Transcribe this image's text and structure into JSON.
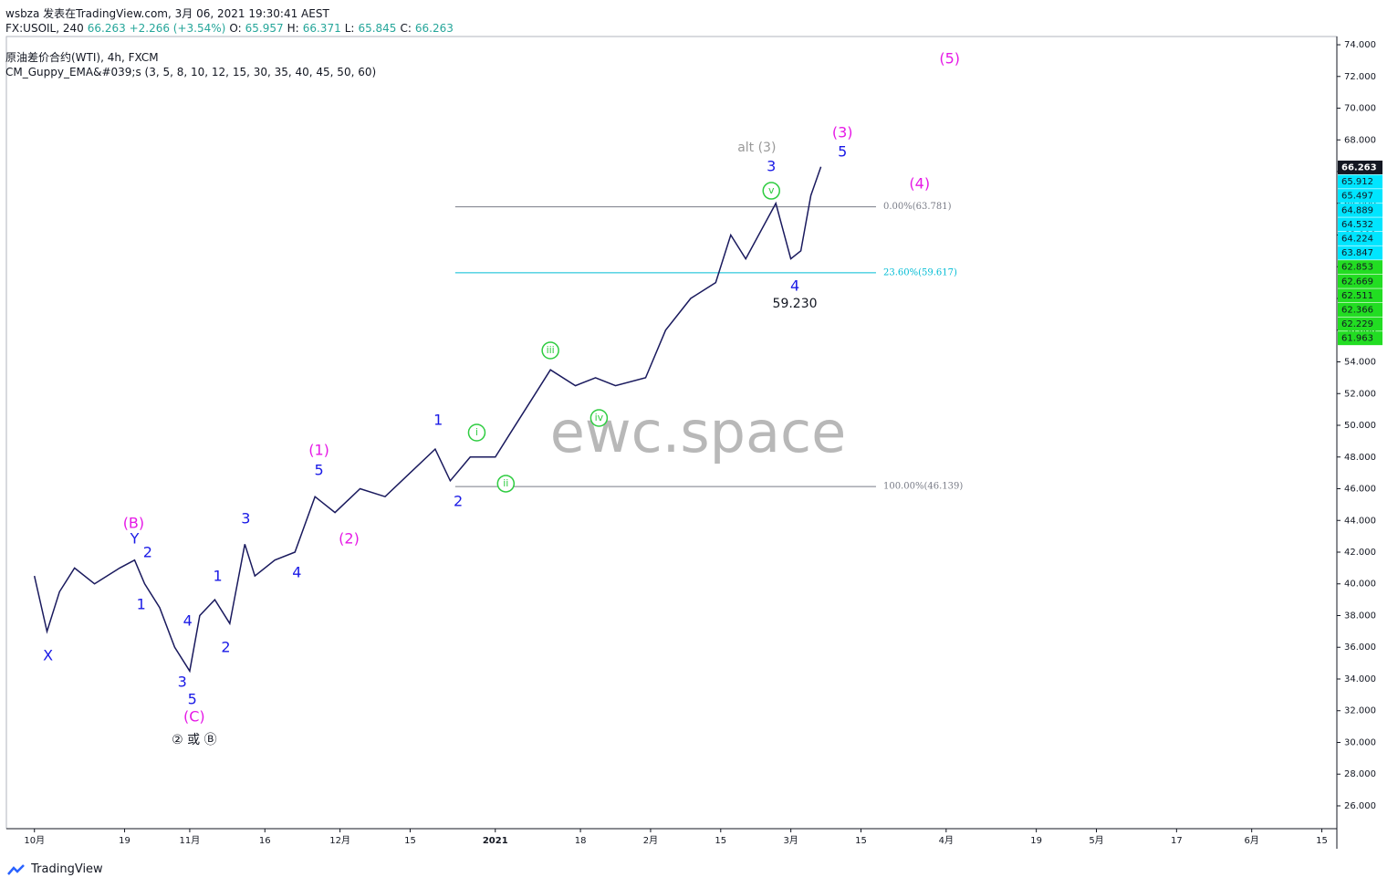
{
  "header": {
    "publisher": "wsbza 发表在TradingView.com, 3月 06, 2021 19:30:41 AEST",
    "quote": [
      {
        "text": "FX:USOIL, 240",
        "color": "#131722"
      },
      {
        "text": "66.263 +2.266 (+3.54%)",
        "color": "#26a69a"
      },
      {
        "text": "O:",
        "color": "#131722"
      },
      {
        "text": "65.957",
        "color": "#26a69a"
      },
      {
        "text": "H:",
        "color": "#131722"
      },
      {
        "text": "66.371",
        "color": "#26a69a"
      },
      {
        "text": "L:",
        "color": "#131722"
      },
      {
        "text": "65.845",
        "color": "#26a69a"
      },
      {
        "text": "C:",
        "color": "#131722"
      },
      {
        "text": "66.263",
        "color": "#26a69a"
      }
    ],
    "symbol": "原油差价合约(WTI), 4h, FXCM",
    "indicator": "CM_Guppy_EMA&#039;s (3, 5, 8, 10, 12, 15, 30, 35, 40, 45, 50, 60)"
  },
  "chart_data": {
    "type": "line",
    "watermark": "ewc.space",
    "series": [
      {
        "color": "#1a1a5e",
        "x": [
          0,
          2.5,
          5,
          8,
          12,
          17,
          20,
          22,
          25,
          28,
          31,
          33,
          36,
          39,
          42,
          44,
          48,
          52,
          56,
          60,
          65,
          70,
          75,
          80,
          83,
          87,
          92,
          95,
          100,
          103,
          108,
          112,
          116,
          122,
          126,
          131,
          136,
          139,
          142,
          148,
          151,
          153,
          155,
          157
        ],
        "values": [
          40.5,
          37,
          39.5,
          41,
          40,
          41,
          41.5,
          40,
          38.5,
          36,
          34.5,
          38,
          39,
          37.5,
          42.5,
          40.5,
          41.5,
          42,
          45.5,
          44.5,
          46,
          45.5,
          47,
          48.5,
          46.5,
          48,
          48,
          49.5,
          52,
          53.5,
          52.5,
          53,
          52.5,
          53,
          56,
          58,
          59,
          62,
          60.5,
          64,
          60.5,
          61,
          64.5,
          66.3
        ]
      }
    ],
    "xlim": [
      -5.6,
      260
    ],
    "xticks": [
      {
        "value": 0,
        "label": "10月"
      },
      {
        "value": 18,
        "label": "19"
      },
      {
        "value": 31,
        "label": "11月"
      },
      {
        "value": 46,
        "label": "16"
      },
      {
        "value": 61,
        "label": "12月"
      },
      {
        "value": 75,
        "label": "15"
      },
      {
        "value": 92,
        "label": "2021"
      },
      {
        "value": 109,
        "label": "18"
      },
      {
        "value": 123,
        "label": "2月"
      },
      {
        "value": 137,
        "label": "15"
      },
      {
        "value": 151,
        "label": "3月"
      },
      {
        "value": 165,
        "label": "15"
      },
      {
        "value": 182,
        "label": "4月"
      },
      {
        "value": 200,
        "label": "19"
      },
      {
        "value": 212,
        "label": "5月"
      },
      {
        "value": 228,
        "label": "17"
      },
      {
        "value": 243,
        "label": "6月"
      },
      {
        "value": 257,
        "label": "15"
      }
    ],
    "ylim": [
      24.56,
      74.52
    ],
    "yticks": [
      {
        "value": 26,
        "label": "26.000"
      },
      {
        "value": 28,
        "label": "28.000"
      },
      {
        "value": 30,
        "label": "30.000"
      },
      {
        "value": 32,
        "label": "32.000"
      },
      {
        "value": 34,
        "label": "34.000"
      },
      {
        "value": 36,
        "label": "36.000"
      },
      {
        "value": 38,
        "label": "38.000"
      },
      {
        "value": 40,
        "label": "40.000"
      },
      {
        "value": 42,
        "label": "42.000"
      },
      {
        "value": 44,
        "label": "44.000"
      },
      {
        "value": 46,
        "label": "46.000"
      },
      {
        "value": 48,
        "label": "48.000"
      },
      {
        "value": 50,
        "label": "50.000"
      },
      {
        "value": 52,
        "label": "52.000"
      },
      {
        "value": 54,
        "label": "54.000"
      },
      {
        "value": 56,
        "label": "56.000"
      },
      {
        "value": 58,
        "label": "58.000"
      },
      {
        "value": 60,
        "label": "60.000"
      },
      {
        "value": 62,
        "label": "62.000"
      },
      {
        "value": 64,
        "label": "64.000"
      },
      {
        "value": 66,
        "label": "66.000"
      },
      {
        "value": 68,
        "label": "68.000"
      },
      {
        "value": 70,
        "label": "70.000"
      },
      {
        "value": 72,
        "label": "72.000"
      },
      {
        "value": 74,
        "label": "74.000"
      }
    ],
    "price_labels": [
      {
        "value": 66.263,
        "color": "#131722"
      },
      {
        "value": 65.912,
        "color": "#00e5ff"
      },
      {
        "value": 65.497,
        "color": "#00e5ff"
      },
      {
        "value": 64.889,
        "color": "#00e5ff"
      },
      {
        "value": 64.532,
        "color": "#00e5ff"
      },
      {
        "value": 64.224,
        "color": "#00e5ff"
      },
      {
        "value": 63.847,
        "color": "#00e5ff"
      },
      {
        "value": 62.853,
        "color": "#22dd22"
      },
      {
        "value": 62.669,
        "color": "#22dd22"
      },
      {
        "value": 62.511,
        "color": "#22dd22"
      },
      {
        "value": 62.366,
        "color": "#22dd22"
      },
      {
        "value": 62.229,
        "color": "#22dd22"
      },
      {
        "value": 61.963,
        "color": "#22dd22"
      }
    ],
    "fib_levels": [
      {
        "value": 63.781,
        "label": "0.00%(63.781)",
        "color": "#787b86"
      },
      {
        "value": 59.617,
        "label": "23.60%(59.617)",
        "color": "#00bcd4"
      },
      {
        "value": 46.139,
        "label": "100.00%(46.139)",
        "color": "#787b86"
      }
    ],
    "fib_x": [
      84,
      168
    ],
    "annotations": [
      {
        "text": "(5)",
        "x": 182.7,
        "y": 73.08,
        "color": "#e619e6"
      },
      {
        "text": "(3)",
        "x": 161.3,
        "y": 68.42,
        "color": "#e619e6"
      },
      {
        "text": "5",
        "x": 161.3,
        "y": 67.21,
        "color": "#1a1ae6"
      },
      {
        "text": "(4)",
        "x": 176.7,
        "y": 65.19,
        "color": "#e619e6"
      },
      {
        "text": "alt (3)",
        "x": 144.2,
        "y": 67.5,
        "color": "#999999"
      },
      {
        "text": "3",
        "x": 147.1,
        "y": 66.29,
        "color": "#1a1ae6"
      },
      {
        "text": "v",
        "x": 147.1,
        "y": 64.79,
        "color": "#2ecc40",
        "circle": true
      },
      {
        "text": "4",
        "x": 151.8,
        "y": 58.75,
        "color": "#1a1ae6"
      },
      {
        "text": "59.230",
        "x": 151.8,
        "y": 57.65,
        "color": "#131722"
      },
      {
        "text": "iii",
        "x": 103,
        "y": 54.72,
        "color": "#2ecc40",
        "circle": true
      },
      {
        "text": "iv",
        "x": 112.7,
        "y": 50.46,
        "color": "#2ecc40",
        "circle": true
      },
      {
        "text": "i",
        "x": 88.3,
        "y": 49.54,
        "color": "#2ecc40",
        "circle": true
      },
      {
        "text": "ii",
        "x": 94.1,
        "y": 46.32,
        "color": "#2ecc40",
        "circle": true
      },
      {
        "text": "1",
        "x": 80.6,
        "y": 50.29,
        "color": "#1a1ae6"
      },
      {
        "text": "2",
        "x": 84.6,
        "y": 45.17,
        "color": "#1a1ae6"
      },
      {
        "text": "(1)",
        "x": 56.8,
        "y": 48.39,
        "color": "#e619e6"
      },
      {
        "text": "5",
        "x": 56.8,
        "y": 47.12,
        "color": "#1a1ae6"
      },
      {
        "text": "(2)",
        "x": 62.8,
        "y": 42.81,
        "color": "#e619e6"
      },
      {
        "text": "3",
        "x": 42.2,
        "y": 44.07,
        "color": "#1a1ae6"
      },
      {
        "text": "4",
        "x": 52.4,
        "y": 40.68,
        "color": "#1a1ae6"
      },
      {
        "text": "1",
        "x": 36.6,
        "y": 40.45,
        "color": "#1a1ae6"
      },
      {
        "text": "2",
        "x": 38.2,
        "y": 35.96,
        "color": "#1a1ae6"
      },
      {
        "text": "4",
        "x": 30.6,
        "y": 37.63,
        "color": "#1a1ae6"
      },
      {
        "text": "3",
        "x": 29.5,
        "y": 33.77,
        "color": "#1a1ae6"
      },
      {
        "text": "5",
        "x": 31.5,
        "y": 32.68,
        "color": "#1a1ae6"
      },
      {
        "text": "(C)",
        "x": 31.9,
        "y": 31.58,
        "color": "#e619e6"
      },
      {
        "text": "(B)",
        "x": 19.8,
        "y": 43.78,
        "color": "#e619e6"
      },
      {
        "text": "Y",
        "x": 20,
        "y": 42.81,
        "color": "#1a1ae6"
      },
      {
        "text": "2",
        "x": 22.6,
        "y": 41.94,
        "color": "#1a1ae6"
      },
      {
        "text": "1",
        "x": 21.3,
        "y": 38.66,
        "color": "#1a1ae6"
      },
      {
        "text": "X",
        "x": 2.7,
        "y": 35.44,
        "color": "#1a1ae6"
      },
      {
        "text": "② 或 Ⓑ",
        "x": 31.9,
        "y": 30.14,
        "color": "#131722"
      }
    ]
  },
  "footer": {
    "brand": "TradingView"
  }
}
